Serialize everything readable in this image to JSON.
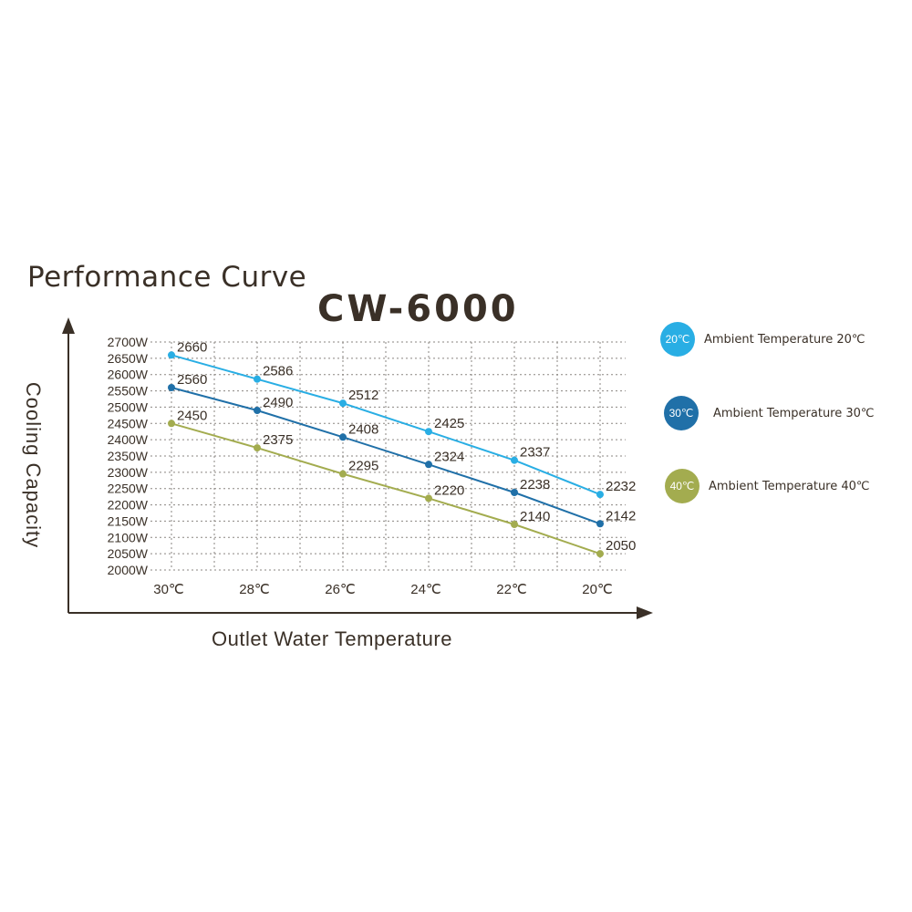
{
  "title": "Performance Curve",
  "model": "CW-6000",
  "chart_data": {
    "type": "line",
    "xlabel": "Outlet Water Temperature",
    "ylabel": "Cooling Capacity",
    "categories": [
      "30℃",
      "28℃",
      "26℃",
      "24℃",
      "22℃",
      "20℃"
    ],
    "yticks": [
      "2700W",
      "2650W",
      "2600W",
      "2550W",
      "2500W",
      "2450W",
      "2400W",
      "2350W",
      "2300W",
      "2250W",
      "2200W",
      "2150W",
      "2100W",
      "2050W",
      "2000W"
    ],
    "ylim": [
      2000,
      2700
    ],
    "grid": true,
    "legend_position": "right",
    "series": [
      {
        "name": "Ambient Temperature 20℃",
        "badge": "20℃",
        "color": "#29aee4",
        "values": [
          2660,
          2586,
          2512,
          2425,
          2337,
          2232
        ]
      },
      {
        "name": "Ambient Temperature 30℃",
        "badge": "30℃",
        "color": "#2070a8",
        "values": [
          2560,
          2490,
          2408,
          2324,
          2238,
          2142
        ]
      },
      {
        "name": "Ambient Temperature 40℃",
        "badge": "40℃",
        "color": "#a3ac4f",
        "values": [
          2450,
          2375,
          2295,
          2220,
          2140,
          2050
        ]
      }
    ]
  }
}
